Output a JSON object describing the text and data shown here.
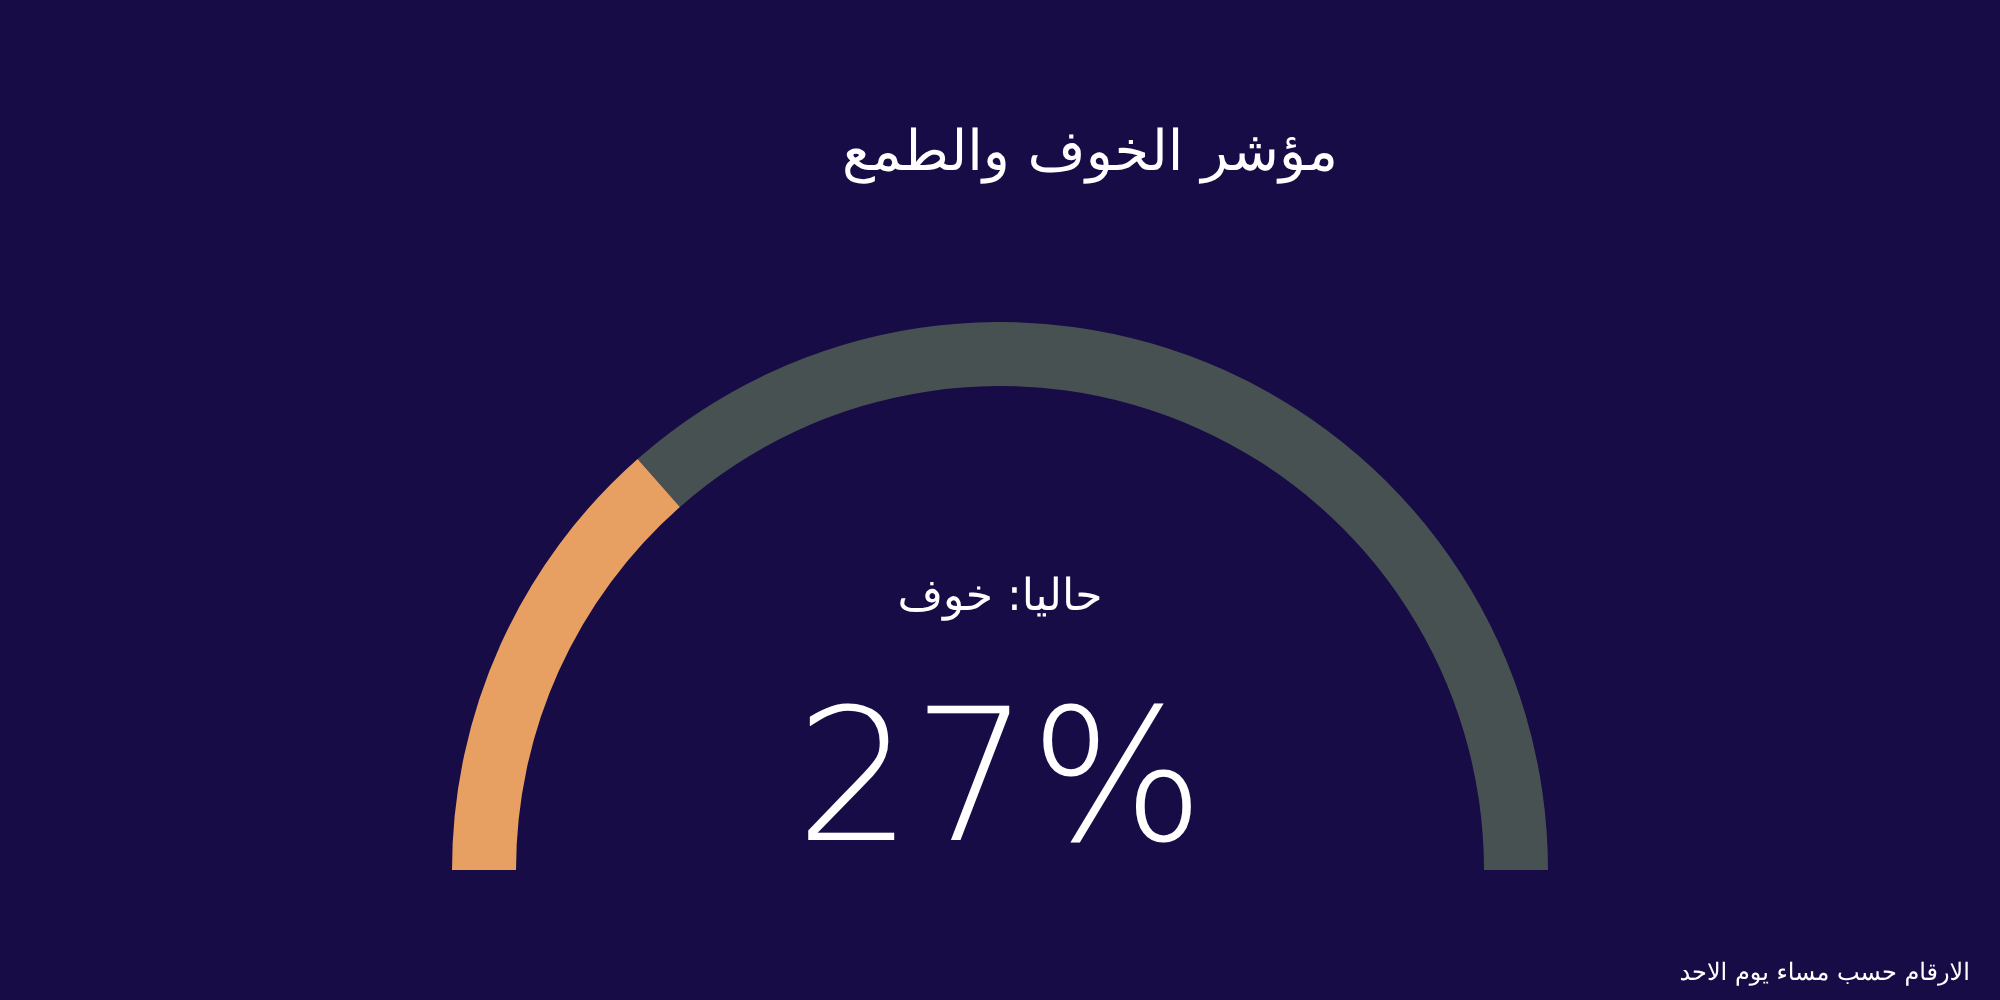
{
  "chart_data": {
    "type": "donut",
    "title": "مؤشر الخوف والطمع",
    "categories": [
      null,
      null
    ],
    "values": [
      27,
      73
    ],
    "colors": [
      "#e8a062",
      "#485152"
    ],
    "annotations": [
      "حاليا: خوف",
      "27%",
      "الارقام حسب مساء يوم الاحد"
    ]
  }
}
